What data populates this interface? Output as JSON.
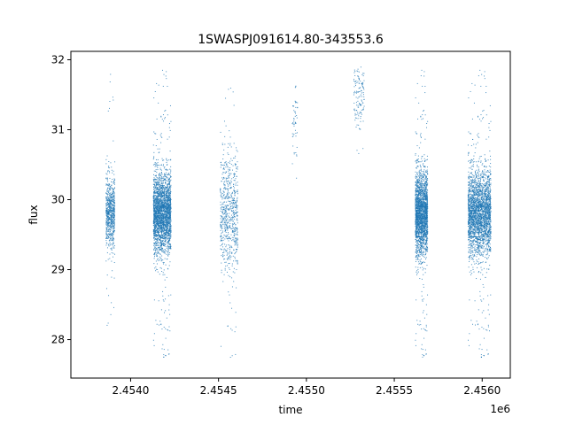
{
  "chart_data": {
    "type": "scatter",
    "title": "1SWASPJ091614.80-343553.6",
    "xlabel": "time",
    "ylabel": "flux",
    "x_offset_label": "1e6",
    "xlim": [
      2.45366,
      2.45616
    ],
    "ylim": [
      27.45,
      32.12
    ],
    "x_ticks": [
      2.454,
      2.4545,
      2.455,
      2.4555,
      2.456
    ],
    "x_tick_labels": [
      "2.4540",
      "2.4545",
      "2.4550",
      "2.4555",
      "2.4560"
    ],
    "y_ticks": [
      28,
      29,
      30,
      31,
      32
    ],
    "y_tick_labels": [
      "28",
      "29",
      "30",
      "31",
      "32"
    ],
    "grid": false,
    "point_color": "#1f77b4",
    "clusters": [
      {
        "x_range": [
          2.45386,
          2.45391
        ],
        "y_center": 29.8,
        "y_spread": 0.25,
        "y_range": [
          28.0,
          31.8
        ],
        "count": 700
      },
      {
        "x_range": [
          2.45413,
          2.45423
        ],
        "y_center": 29.8,
        "y_spread": 0.28,
        "y_range": [
          27.7,
          31.9
        ],
        "count": 2600
      },
      {
        "x_range": [
          2.45451,
          2.45461
        ],
        "y_center": 29.8,
        "y_spread": 0.4,
        "y_range": [
          27.7,
          31.7
        ],
        "count": 700
      },
      {
        "x_range": [
          2.45492,
          2.45495
        ],
        "y_center": 31.0,
        "y_spread": 0.3,
        "y_range": [
          30.3,
          31.9
        ],
        "count": 50
      },
      {
        "x_range": [
          2.45527,
          2.45533
        ],
        "y_center": 31.5,
        "y_spread": 0.25,
        "y_range": [
          30.4,
          31.9
        ],
        "count": 140
      },
      {
        "x_range": [
          2.45562,
          2.45569
        ],
        "y_center": 29.8,
        "y_spread": 0.3,
        "y_range": [
          27.7,
          31.9
        ],
        "count": 2200
      },
      {
        "x_range": [
          2.45592,
          2.45605
        ],
        "y_center": 29.8,
        "y_spread": 0.3,
        "y_range": [
          27.7,
          31.9
        ],
        "count": 2700
      }
    ]
  }
}
